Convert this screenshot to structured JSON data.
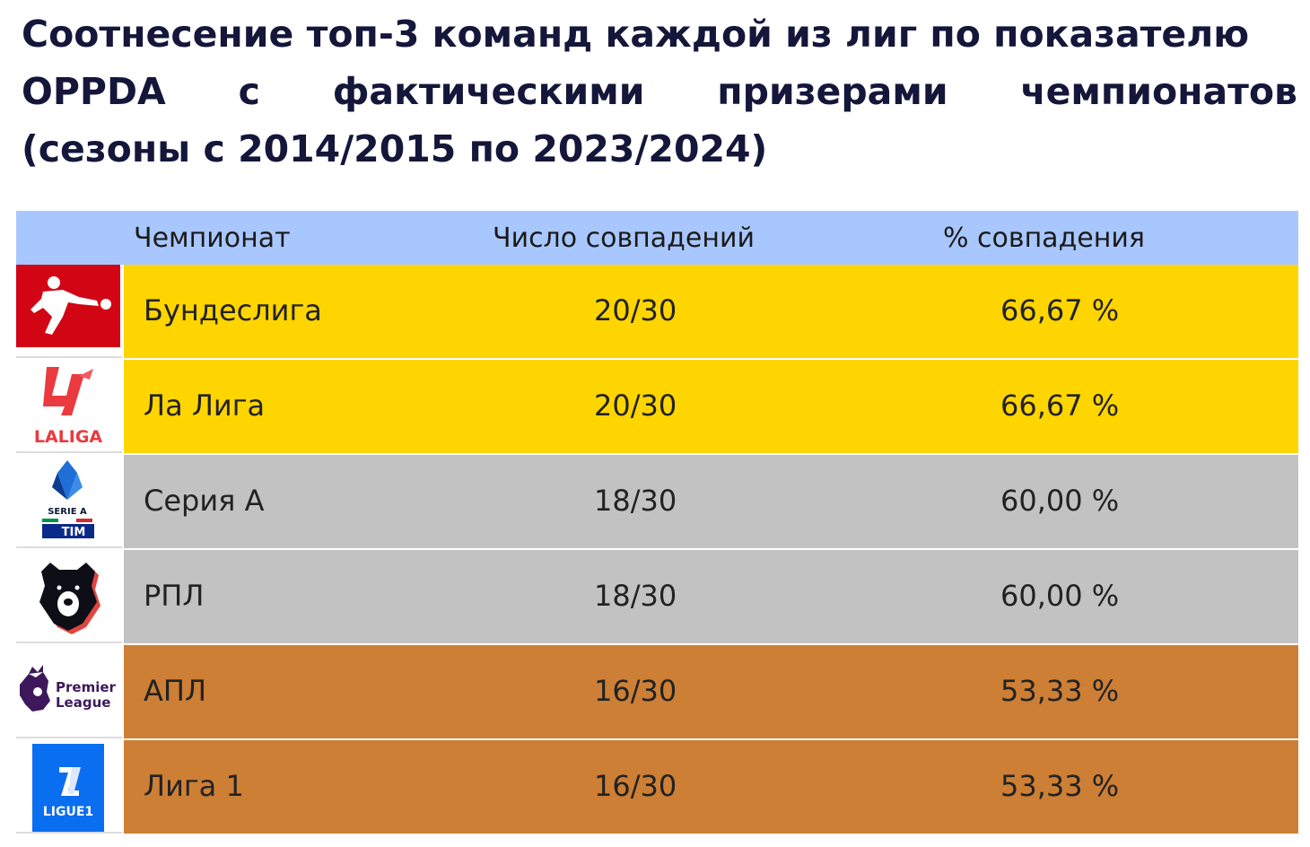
{
  "title": {
    "line1": "Соотнесение топ-3 команд каждой из лиг по показателю",
    "line2_words": [
      "OPPDA",
      "с",
      "фактическими",
      "призерами",
      "чемпионатов"
    ],
    "line3": "(сезоны с 2014/2015 по 2023/2024)"
  },
  "table": {
    "headers": {
      "league": "Чемпионат",
      "count": "Число совпадений",
      "percent": "% совпадения"
    },
    "rows": [
      {
        "league": "Бундеслига",
        "count": "20/30",
        "percent": "66,67 %",
        "tier": "gold",
        "logo_icon": "bundesliga-logo-icon"
      },
      {
        "league": "Ла Лига",
        "count": "20/30",
        "percent": "66,67 %",
        "tier": "gold",
        "logo_icon": "laliga-logo-icon"
      },
      {
        "league": "Серия А",
        "count": "18/30",
        "percent": "60,00 %",
        "tier": "silver",
        "logo_icon": "serie-a-logo-icon"
      },
      {
        "league": "РПЛ",
        "count": "18/30",
        "percent": "60,00 %",
        "tier": "silver",
        "logo_icon": "rpl-logo-icon"
      },
      {
        "league": "АПЛ",
        "count": "16/30",
        "percent": "53,33 %",
        "tier": "bronze",
        "logo_icon": "premier-league-logo-icon"
      },
      {
        "league": "Лига 1",
        "count": "16/30",
        "percent": "53,33 %",
        "tier": "bronze",
        "logo_icon": "ligue1-logo-icon"
      }
    ]
  },
  "logo_text": {
    "laliga": "LALIGA",
    "serie_a": "SERIE A",
    "tim": "TIM",
    "premier": "Premier",
    "league": "League",
    "ligue1": "LIGUE1"
  },
  "colors": {
    "header": "#a9c7ff",
    "gold": "#ffd500",
    "silver": "#c2c2c2",
    "bronze": "#cd7f35"
  }
}
